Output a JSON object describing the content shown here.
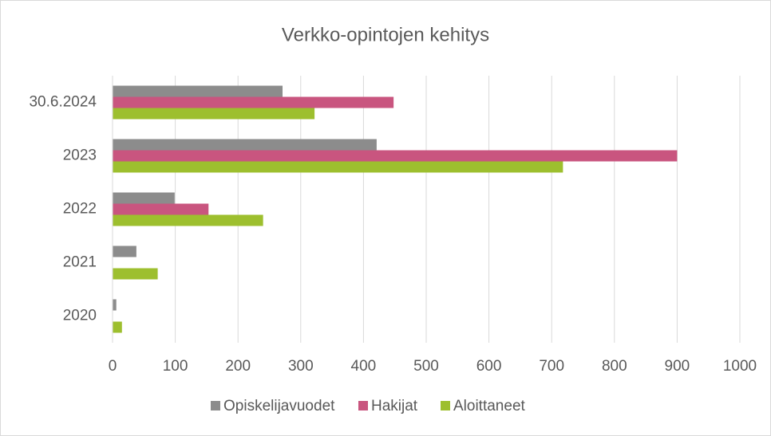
{
  "chart_data": {
    "type": "barh",
    "title": "Verkko-opintojen kehitys",
    "categories": [
      "30.6.2024",
      "2023",
      "2022",
      "2021",
      "2020"
    ],
    "series": [
      {
        "name": "Opiskelijavuodet",
        "color": "#8c8c8c",
        "values": [
          271,
          421,
          99,
          38,
          6
        ]
      },
      {
        "name": "Hakijat",
        "color": "#c9557f",
        "values": [
          448,
          900,
          153,
          null,
          null
        ]
      },
      {
        "name": "Aloittaneet",
        "color": "#9dbf2e",
        "values": [
          322,
          718,
          240,
          72,
          15
        ]
      }
    ],
    "xlim": [
      0,
      1000
    ],
    "xticks": [
      0,
      100,
      200,
      300,
      400,
      500,
      600,
      700,
      800,
      900,
      1000
    ],
    "grid": true,
    "legend": "bottom"
  }
}
